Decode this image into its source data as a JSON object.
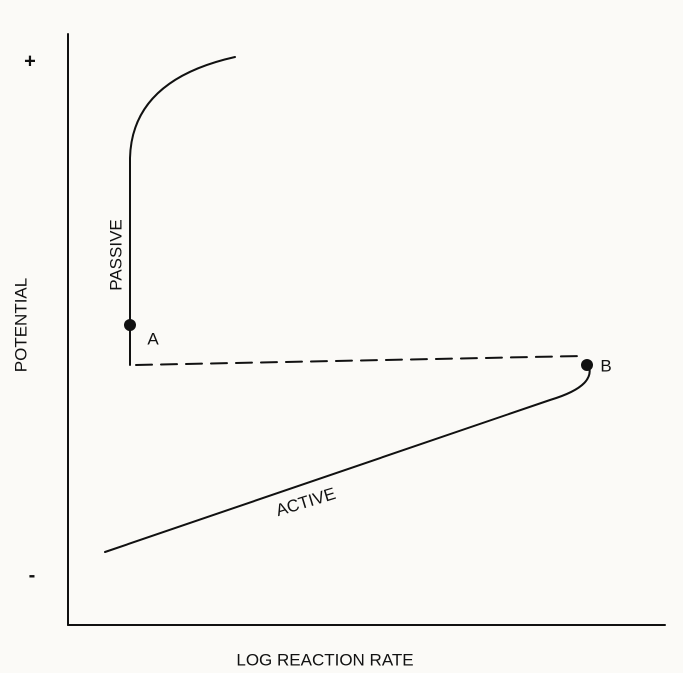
{
  "axes": {
    "y_label": "POTENTIAL",
    "x_label": "LOG REACTION RATE",
    "y_plus": "+",
    "y_minus": "-"
  },
  "regions": {
    "passive": "PASSIVE",
    "active": "ACTIVE"
  },
  "points": {
    "a": "A",
    "b": "B"
  }
}
